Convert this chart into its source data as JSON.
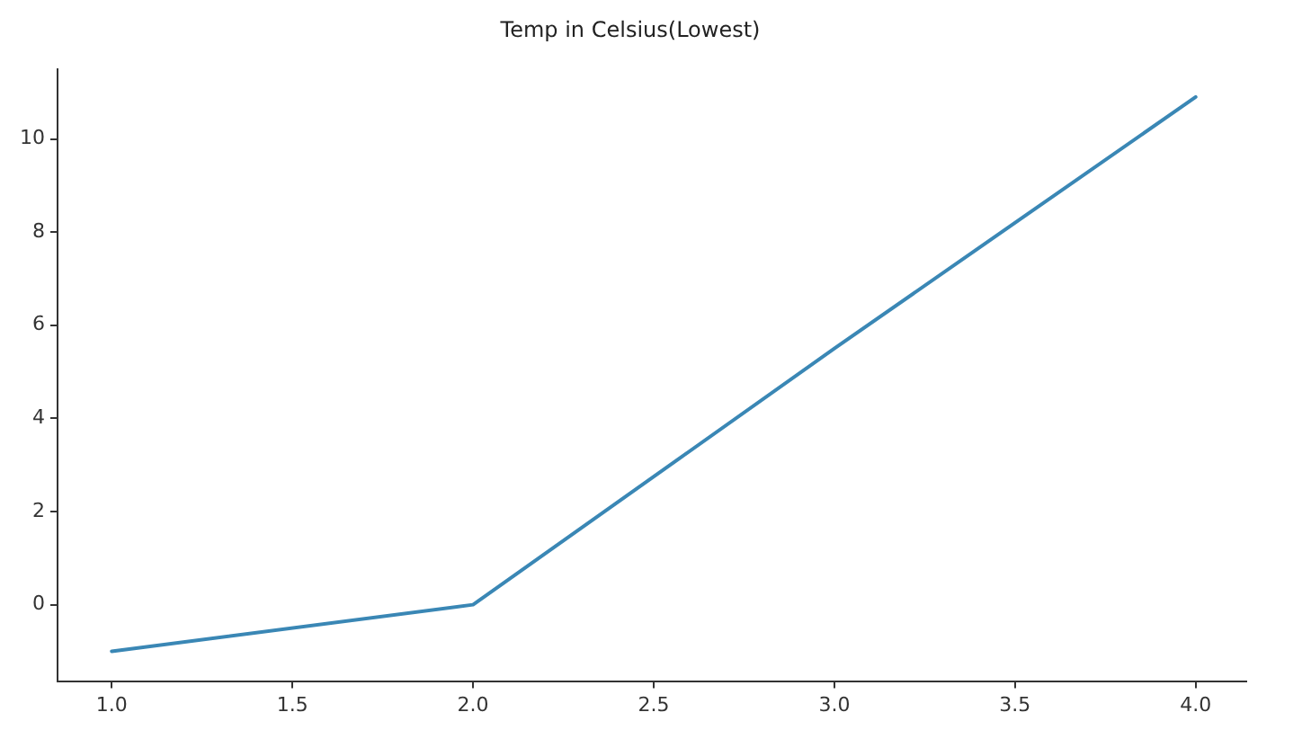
{
  "chart_data": {
    "type": "line",
    "title": "Temp in Celsius(Lowest)",
    "x": [
      1,
      2,
      3,
      4
    ],
    "series": [
      {
        "color": "#3a87b5",
        "values": [
          -1,
          0,
          5.5,
          10.9
        ]
      }
    ],
    "xlim": [
      0.85,
      4.14
    ],
    "xticks": [
      {
        "value": 1,
        "label": "1.0"
      },
      {
        "value": 1.5,
        "label": "1.5"
      },
      {
        "value": 2,
        "label": "2.0"
      },
      {
        "value": 2.5,
        "label": "2.5"
      },
      {
        "value": 3,
        "label": "3.0"
      },
      {
        "value": 3.5,
        "label": "3.5"
      },
      {
        "value": 4,
        "label": "4.0"
      }
    ],
    "ylim": [
      -1.64,
      11.5
    ],
    "yticks": [
      0,
      2,
      4,
      6,
      8,
      10
    ],
    "legend": false,
    "marker": "none",
    "line_style": "solid"
  }
}
